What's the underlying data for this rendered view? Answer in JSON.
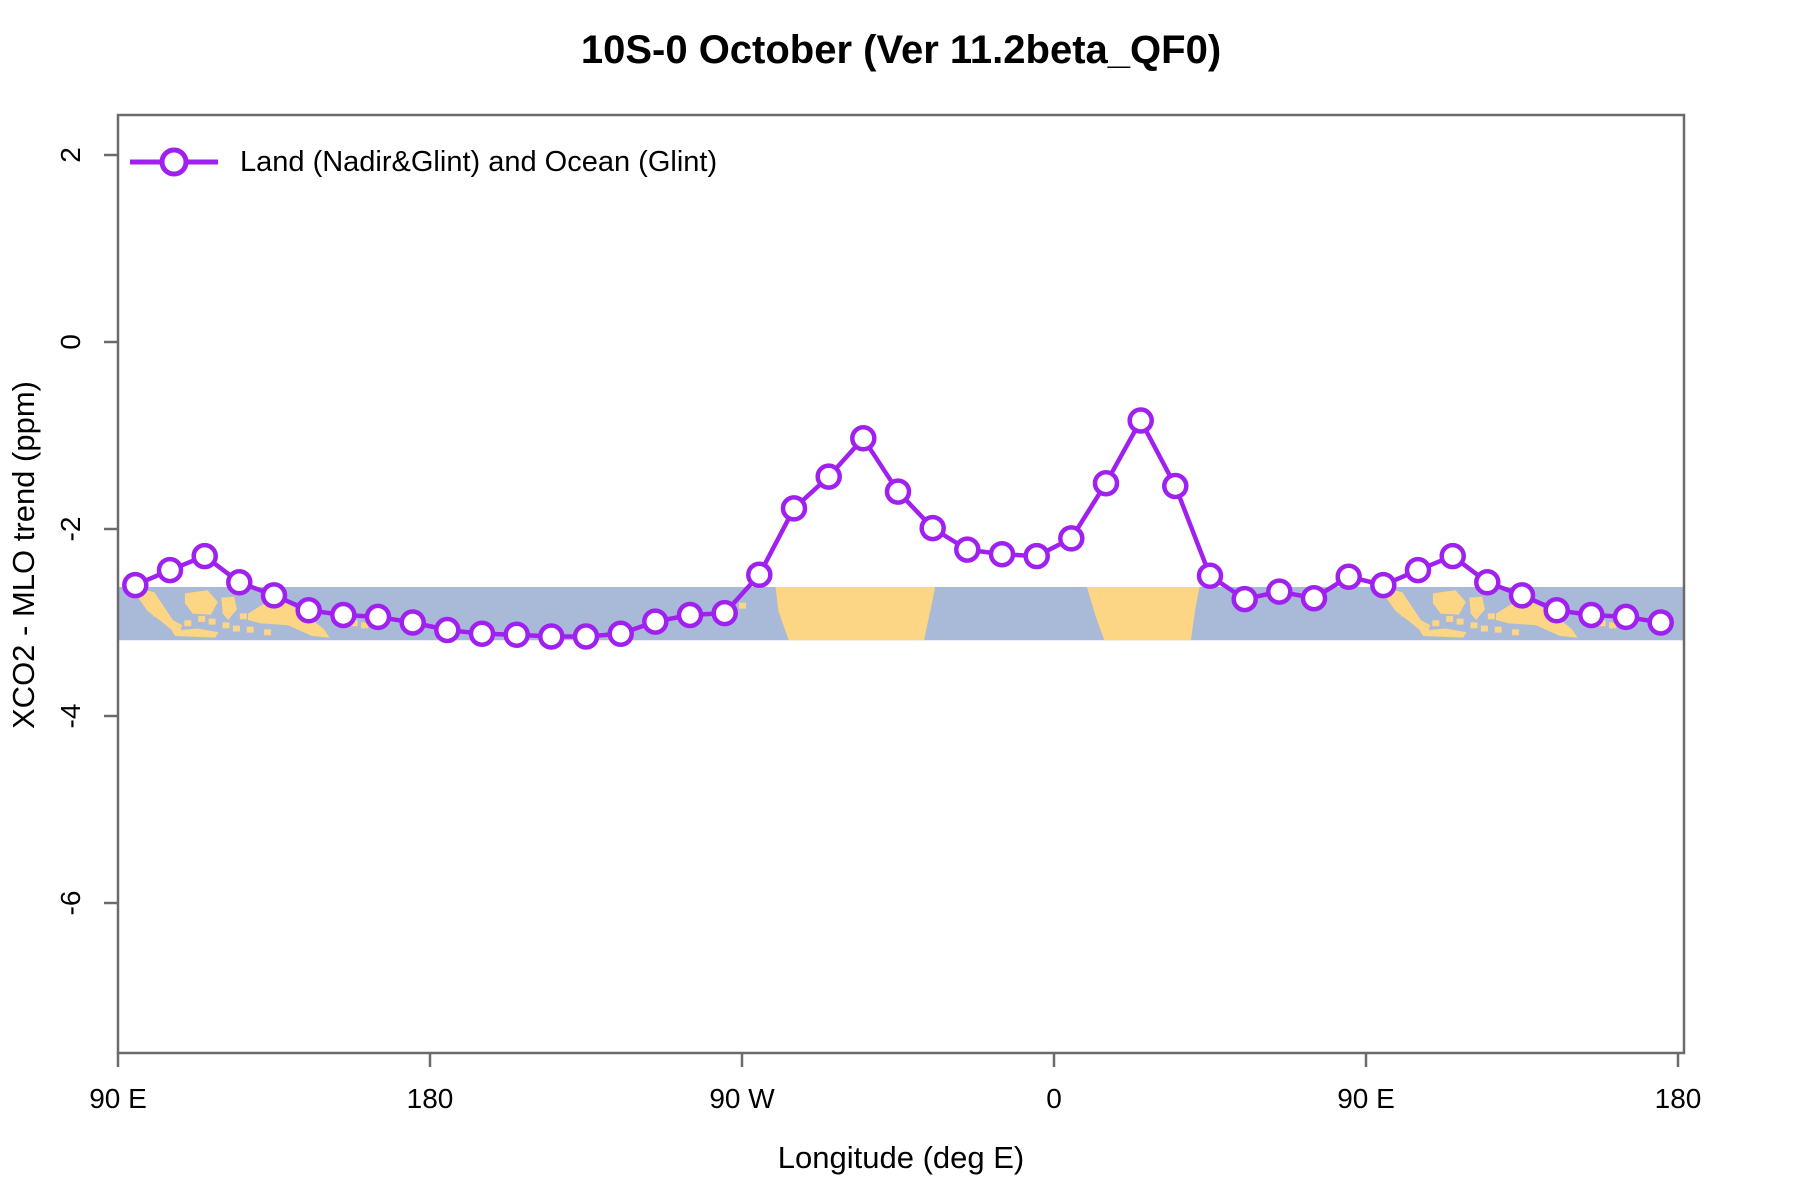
{
  "title": "10S-0 October (Ver 11.2beta_QF0)",
  "legend": {
    "label": "Land (Nadir&Glint) and Ocean (Glint)",
    "marker": "open-circle-on-line"
  },
  "axes": {
    "x_label": "Longitude (deg E)",
    "y_label": "XCO2 - MLO trend (ppm)",
    "x_ticks": [
      {
        "pos": 90,
        "label": "90 E"
      },
      {
        "pos": 180,
        "label": "180"
      },
      {
        "pos": 270,
        "label": "90 W"
      },
      {
        "pos": 360,
        "label": "0"
      },
      {
        "pos": 450,
        "label": "90 E"
      },
      {
        "pos": 540,
        "label": "180"
      }
    ],
    "y_ticks": [
      {
        "pos": 2,
        "label": "2"
      },
      {
        "pos": 0,
        "label": "0"
      },
      {
        "pos": -2,
        "label": "-2"
      },
      {
        "pos": -4,
        "label": "-4"
      },
      {
        "pos": -6,
        "label": "-6"
      }
    ]
  },
  "colors": {
    "series": "#A020F0",
    "marker_fill": "#FFFFFF",
    "ocean": "#A8BAD8",
    "land": "#FCD585",
    "axis": "#6B6B6B",
    "text": "#000000",
    "background": "#FFFFFF"
  },
  "chart_data": {
    "type": "line",
    "title": "10S-0 October (Ver 11.2beta_QF0)",
    "xlabel": "Longitude (deg E)",
    "ylabel": "XCO2 - MLO trend (ppm)",
    "xlim": [
      90,
      542
    ],
    "ylim": [
      -7.6,
      2.45
    ],
    "x_axis_note": "degrees east, wrapping past 180 (e.g. 275 = 85W); rightmost 90 deg repeats the 95E-175E bins",
    "grid": false,
    "legend_position": "top-left-inside",
    "series": [
      {
        "name": "Land (Nadir&Glint) and Ocean (Glint)",
        "marker": "open-circle",
        "x": [
          95,
          105,
          115,
          125,
          135,
          145,
          155,
          165,
          175,
          185,
          195,
          205,
          215,
          225,
          235,
          245,
          255,
          265,
          275,
          285,
          295,
          305,
          315,
          325,
          335,
          345,
          355,
          365,
          375,
          385,
          395,
          405,
          415,
          425,
          435,
          445,
          455,
          465,
          475,
          485,
          495,
          505,
          515,
          525,
          535
        ],
        "y": [
          -2.6,
          -2.44,
          -2.29,
          -2.57,
          -2.71,
          -2.87,
          -2.92,
          -2.94,
          -3.0,
          -3.08,
          -3.12,
          -3.13,
          -3.15,
          -3.15,
          -3.12,
          -2.99,
          -2.92,
          -2.9,
          -2.49,
          -1.78,
          -1.44,
          -1.03,
          -1.6,
          -1.99,
          -2.22,
          -2.27,
          -2.29,
          -2.1,
          -1.51,
          -0.84,
          -1.54,
          -2.5,
          -2.75,
          -2.67,
          -2.74,
          -2.51,
          -2.6,
          -2.44,
          -2.29,
          -2.57,
          -2.71,
          -2.87,
          -2.92,
          -2.94,
          -3.0
        ]
      }
    ],
    "map_band": {
      "description": "world map strip for latitude band 10S-0 drawn across plot",
      "value_top": -2.62,
      "value_bottom": -3.19,
      "land_polygons": {
        "south-america": [
          [
            -80.3,
            0
          ],
          [
            -34.3,
            0
          ],
          [
            -35.2,
            0.3
          ],
          [
            -37.5,
            1
          ],
          [
            -76.5,
            1
          ],
          [
            -79.5,
            0.45
          ]
        ],
        "africa": [
          [
            9.5,
            0
          ],
          [
            42.0,
            0
          ],
          [
            40.8,
            0.4
          ],
          [
            39.5,
            1
          ],
          [
            14.5,
            1
          ],
          [
            12.0,
            0.55
          ]
        ],
        "sumatra": [
          [
            95.8,
            0.02
          ],
          [
            100.5,
            0.1
          ],
          [
            105.8,
            0.62
          ],
          [
            108.5,
            0.72
          ],
          [
            107.5,
            0.92
          ],
          [
            103.5,
            0.7
          ],
          [
            98.5,
            0.45
          ],
          [
            95.8,
            0.2
          ]
        ],
        "java-chain": [
          [
            105.5,
            0.82
          ],
          [
            113,
            0.78
          ],
          [
            119,
            0.85
          ],
          [
            118,
            0.95
          ],
          [
            106.5,
            0.92
          ]
        ],
        "borneo": [
          [
            109.3,
            0.12
          ],
          [
            115.8,
            0.06
          ],
          [
            118.8,
            0.28
          ],
          [
            116.8,
            0.52
          ],
          [
            111.5,
            0.5
          ],
          [
            109.3,
            0.3
          ]
        ],
        "sulawesi": [
          [
            119.8,
            0.2
          ],
          [
            123.5,
            0.18
          ],
          [
            124.3,
            0.42
          ],
          [
            121.8,
            0.62
          ],
          [
            120.2,
            0.5
          ]
        ],
        "new-guinea": [
          [
            127.5,
            0.5
          ],
          [
            132,
            0.32
          ],
          [
            138.5,
            0.3
          ],
          [
            144,
            0.5
          ],
          [
            149.5,
            0.8
          ],
          [
            151,
            0.95
          ],
          [
            146,
            0.92
          ],
          [
            139,
            0.72
          ],
          [
            131,
            0.68
          ],
          [
            127.5,
            0.62
          ]
        ]
      },
      "islets": [
        [
          101,
          0.5
        ],
        [
          104,
          0.62
        ],
        [
          110,
          0.68
        ],
        [
          114,
          0.6
        ],
        [
          117,
          0.65
        ],
        [
          121,
          0.72
        ],
        [
          124,
          0.78
        ],
        [
          126,
          0.55
        ],
        [
          128,
          0.8
        ],
        [
          133,
          0.85
        ],
        [
          145,
          0.25
        ],
        [
          152,
          0.55
        ],
        [
          155,
          0.6
        ],
        [
          158,
          0.68
        ],
        [
          161,
          0.72
        ],
        [
          165,
          0.75
        ],
        [
          -90,
          0.35
        ]
      ]
    }
  }
}
